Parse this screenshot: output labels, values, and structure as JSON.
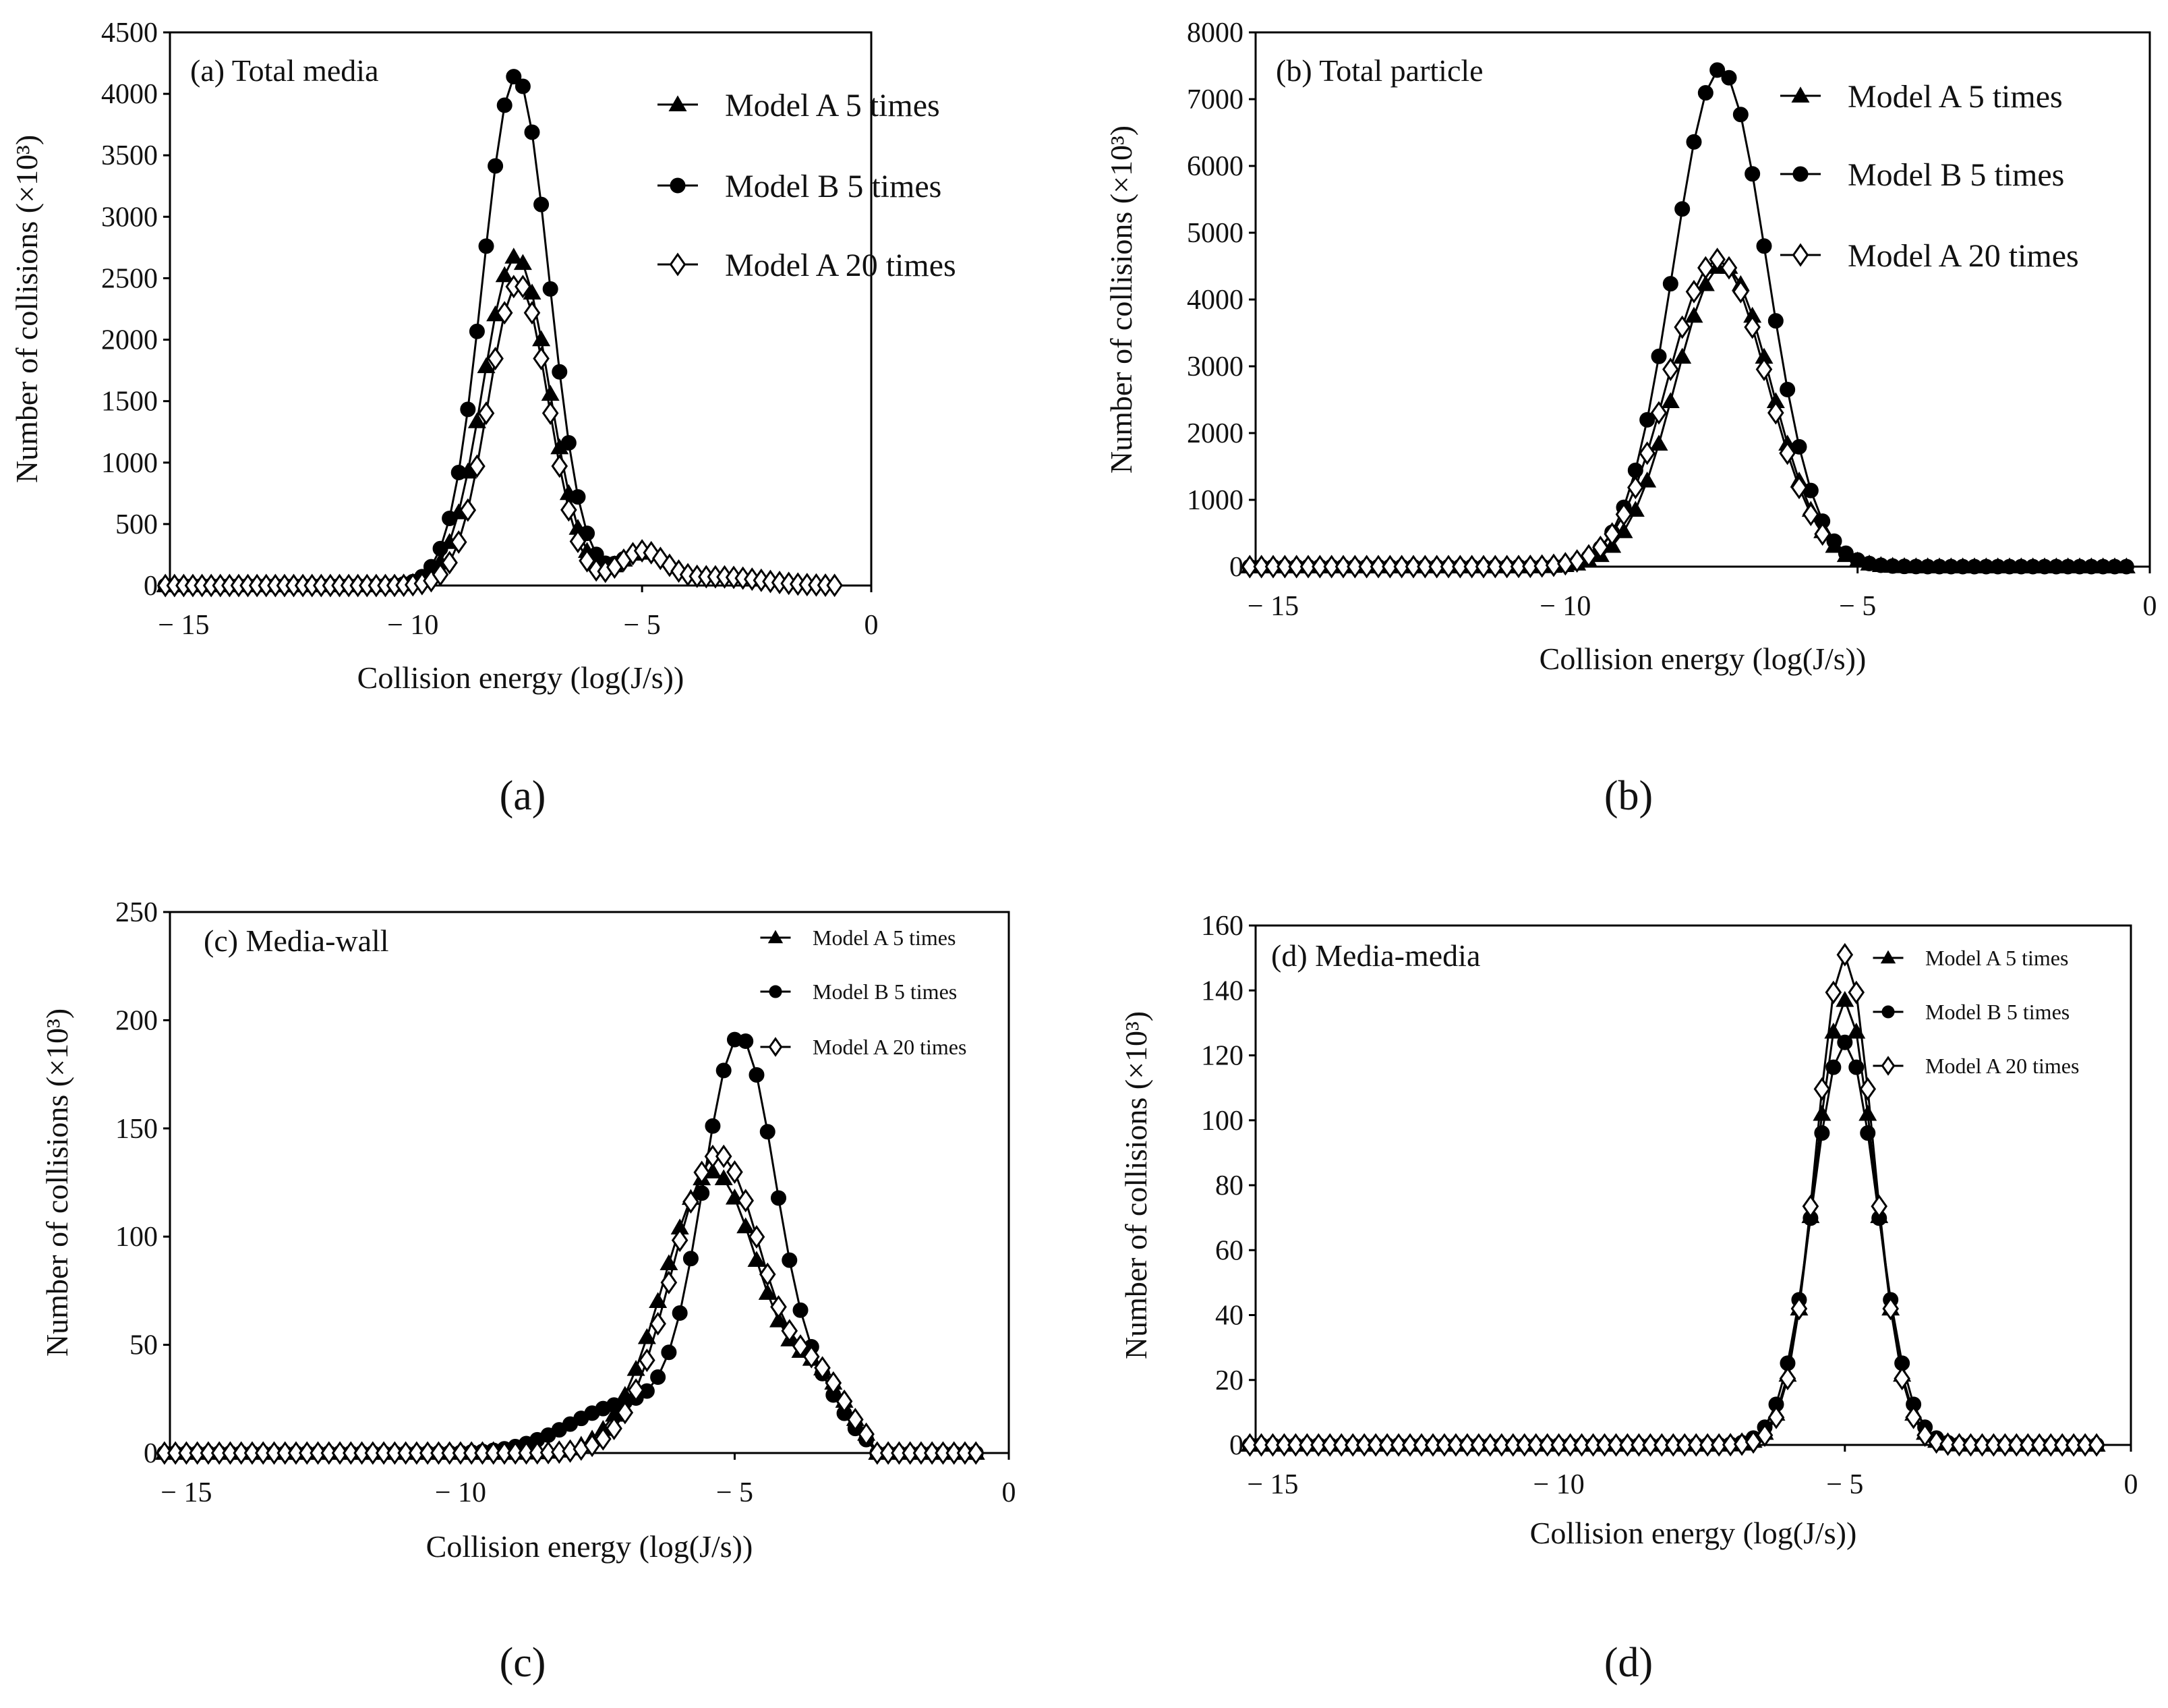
{
  "figure": {
    "captions": {
      "a": "(a)",
      "b": "(b)",
      "c": "(c)",
      "d": "(d)"
    },
    "colors": {
      "line": "#000000",
      "open_marker": "#ffffff"
    }
  },
  "chart_data": [
    {
      "id": "a",
      "type": "line",
      "title": "(a) Total media",
      "xlabel": "Collision energy (log(J/s))",
      "ylabel": "Number of collisions (×10³)",
      "xlim": [
        -15.3,
        0
      ],
      "ylim": [
        0,
        4500
      ],
      "xticks": [
        -15,
        -10,
        -5,
        0
      ],
      "xtick_labels": [
        "− 15",
        "− 10",
        "− 5",
        "0"
      ],
      "yticks": [
        0,
        500,
        1000,
        1500,
        2000,
        2500,
        3000,
        3500,
        4000,
        4500
      ],
      "ytick_labels": [
        "0",
        "500",
        "1000",
        "1500",
        "2000",
        "2500",
        "3000",
        "3500",
        "4000",
        "4500"
      ],
      "legend": {
        "position": "top-right",
        "entries": [
          "Model A  5 times",
          "Model B  5 times",
          "Model A  20 times"
        ]
      },
      "x_range": [
        -15.4,
        -0.8
      ],
      "x_step": 0.2,
      "series": [
        {
          "name": "Model A  5 times",
          "marker": "triangle",
          "x_max": -4.8,
          "components": [
            {
              "amp": 2680,
              "mu": -7.75,
              "sigma": 0.72
            },
            {
              "amp": 260,
              "mu": -5.0,
              "sigma": 0.5
            },
            {
              "amp": 70,
              "mu": -3.5,
              "sigma": 0.9
            }
          ]
        },
        {
          "name": "Model B  5 times",
          "marker": "circle",
          "x_max": -5.4,
          "components": [
            {
              "amp": 4150,
              "mu": -7.75,
              "sigma": 0.72
            },
            {
              "amp": 260,
              "mu": -5.0,
              "sigma": 0.5
            },
            {
              "amp": 70,
              "mu": -3.5,
              "sigma": 0.9
            }
          ]
        },
        {
          "name": "Model A  20 times",
          "marker": "diamond",
          "x_max": -0.8,
          "components": [
            {
              "amp": 2460,
              "mu": -7.7,
              "sigma": 0.66
            },
            {
              "amp": 270,
              "mu": -5.0,
              "sigma": 0.5
            },
            {
              "amp": 70,
              "mu": -3.3,
              "sigma": 0.9
            }
          ]
        }
      ]
    },
    {
      "id": "b",
      "type": "line",
      "title": "(b) Total particle",
      "xlabel": "Collision energy (log(J/s))",
      "ylabel": "Number of collisions (×10³)",
      "xlim": [
        -15.3,
        0
      ],
      "ylim": [
        0,
        8000
      ],
      "xticks": [
        -15,
        -10,
        -5,
        0
      ],
      "xtick_labels": [
        "− 15",
        "− 10",
        "− 5",
        "0"
      ],
      "yticks": [
        0,
        1000,
        2000,
        3000,
        4000,
        5000,
        6000,
        7000,
        8000
      ],
      "ytick_labels": [
        "0",
        "1000",
        "2000",
        "3000",
        "4000",
        "5000",
        "6000",
        "7000",
        "8000"
      ],
      "legend": {
        "position": "top-right",
        "entries": [
          "Model A  5 times",
          "Model B  5 times",
          "Model A  20 times"
        ]
      },
      "x_range": [
        -15.4,
        -0.4
      ],
      "x_step": 0.2,
      "series": [
        {
          "name": "Model A  5 times",
          "marker": "triangle",
          "x_max": -0.4,
          "components": [
            {
              "amp": 4520,
              "mu": -7.3,
              "sigma": 0.82
            }
          ]
        },
        {
          "name": "Model B  5 times",
          "marker": "circle",
          "x_max": -0.4,
          "components": [
            {
              "amp": 7450,
              "mu": -7.35,
              "sigma": 0.8
            }
          ]
        },
        {
          "name": "Model A  20 times",
          "marker": "diamond",
          "x_max": -5.6,
          "components": [
            {
              "amp": 4600,
              "mu": -7.4,
              "sigma": 0.85
            }
          ]
        }
      ]
    },
    {
      "id": "c",
      "type": "line",
      "title": "(c) Media-wall",
      "xlabel": "Collision energy (log(J/s))",
      "ylabel": "Number of collisions (×10³)",
      "xlim": [
        -15.3,
        0
      ],
      "ylim": [
        0,
        250
      ],
      "xticks": [
        -15,
        -10,
        -5,
        0
      ],
      "xtick_labels": [
        "− 15",
        "− 10",
        "− 5",
        "0"
      ],
      "yticks": [
        0,
        50,
        100,
        150,
        200,
        250
      ],
      "ytick_labels": [
        "0",
        "50",
        "100",
        "150",
        "200",
        "250"
      ],
      "legend": {
        "position": "top-right",
        "entries": [
          "Model A  5 times",
          "Model B  5 times",
          "Model A  20 times"
        ]
      },
      "x_range": [
        -15.4,
        -0.6
      ],
      "x_step": 0.2,
      "cutoff": -2.6,
      "series": [
        {
          "name": "Model A  5 times",
          "marker": "triangle",
          "x_max": -0.6,
          "components": [
            {
              "amp": 130,
              "mu": -5.4,
              "sigma": 0.9
            },
            {
              "amp": 28,
              "mu": -3.4,
              "sigma": 0.5
            }
          ]
        },
        {
          "name": "Model B  5 times",
          "marker": "circle",
          "x_max": -0.6,
          "components": [
            {
              "amp": 190,
              "mu": -4.9,
              "sigma": 0.68
            },
            {
              "amp": 20,
              "mu": -3.4,
              "sigma": 0.5
            },
            {
              "amp": 22,
              "mu": -7.0,
              "sigma": 1.0
            }
          ]
        },
        {
          "name": "Model A  20 times",
          "marker": "diamond",
          "x_max": -0.6,
          "components": [
            {
              "amp": 138,
              "mu": -5.3,
              "sigma": 0.85
            },
            {
              "amp": 28,
              "mu": -3.4,
              "sigma": 0.5
            }
          ]
        }
      ]
    },
    {
      "id": "d",
      "type": "line",
      "title": "(d) Media-media",
      "xlabel": "Collision energy (log(J/s))",
      "ylabel": "Number of collisions (×10³)",
      "xlim": [
        -15.3,
        0
      ],
      "ylim": [
        0,
        160
      ],
      "xticks": [
        -15,
        -10,
        -5,
        0
      ],
      "xtick_labels": [
        "− 15",
        "− 10",
        "− 5",
        "0"
      ],
      "yticks": [
        0,
        20,
        40,
        60,
        80,
        100,
        120,
        140,
        160
      ],
      "ytick_labels": [
        "0",
        "20",
        "40",
        "60",
        "80",
        "100",
        "120",
        "140",
        "160"
      ],
      "legend": {
        "position": "top-right",
        "entries": [
          "Model A  5 times",
          "Model B  5 times",
          "Model A  20 times"
        ]
      },
      "x_range": [
        -15.4,
        -0.6
      ],
      "x_step": 0.2,
      "series": [
        {
          "name": "Model A  5 times",
          "marker": "triangle",
          "x_max": -0.6,
          "components": [
            {
              "amp": 137,
              "mu": -5.0,
              "sigma": 0.52
            }
          ]
        },
        {
          "name": "Model B  5 times",
          "marker": "circle",
          "x_max": -0.6,
          "components": [
            {
              "amp": 124,
              "mu": -5.0,
              "sigma": 0.56
            }
          ]
        },
        {
          "name": "Model A  20 times",
          "marker": "diamond",
          "x_max": -0.6,
          "components": [
            {
              "amp": 151,
              "mu": -5.0,
              "sigma": 0.5
            }
          ]
        }
      ]
    }
  ]
}
